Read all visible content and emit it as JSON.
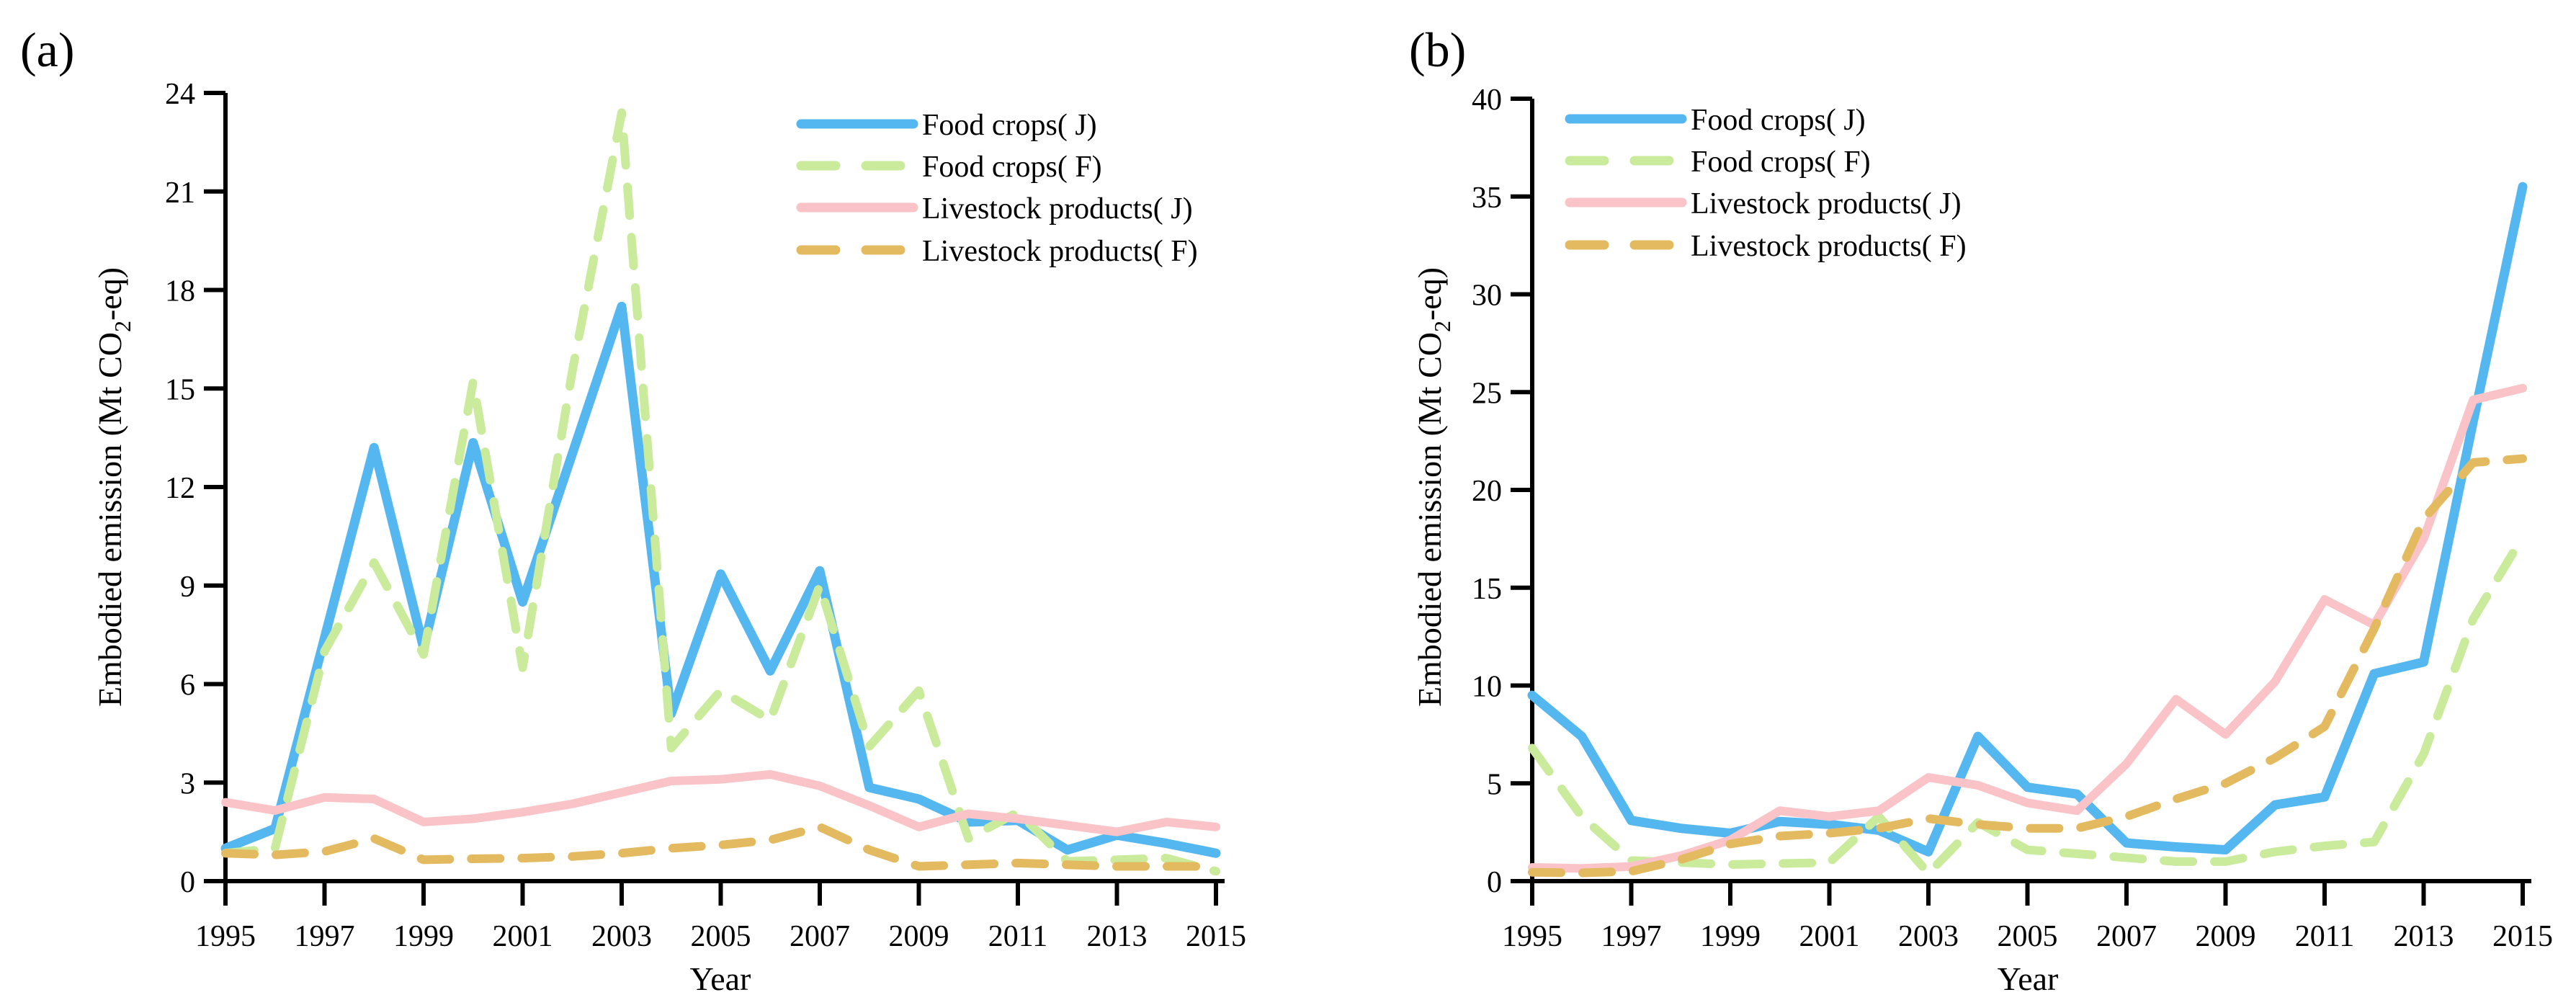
{
  "page": {
    "background": "#ffffff",
    "figure_type": "dual-panel line chart"
  },
  "chart_data": [
    {
      "type": "line",
      "panel_label": "(a)",
      "xlabel": "Year",
      "ylabel_pre": "Embodied emission (Mt CO",
      "ylabel_sub": "2",
      "ylabel_post": "-eq)",
      "ylim": [
        0,
        24
      ],
      "yticks": [
        0,
        3,
        6,
        9,
        12,
        15,
        18,
        21,
        24
      ],
      "xticks": [
        1995,
        1997,
        1999,
        2001,
        2003,
        2005,
        2007,
        2009,
        2011,
        2013,
        2015
      ],
      "x": [
        1995,
        1996,
        1997,
        1998,
        1999,
        2000,
        2001,
        2002,
        2003,
        2004,
        2005,
        2006,
        2007,
        2008,
        2009,
        2010,
        2011,
        2012,
        2013,
        2014,
        2015
      ],
      "grid": false,
      "legend_position": "upper right inside",
      "series": [
        {
          "name": "Food crops( J)",
          "color": "#55b7f0",
          "style": "solid",
          "values": [
            1.0,
            1.6,
            7.4,
            13.2,
            7.1,
            13.35,
            8.5,
            13.0,
            17.5,
            5.1,
            9.35,
            6.4,
            9.45,
            2.85,
            2.5,
            1.8,
            1.85,
            0.95,
            1.4,
            1.15,
            0.85
          ]
        },
        {
          "name": "Food crops( F)",
          "color": "#c9eb9b",
          "style": "dashed",
          "values": [
            0.85,
            1.0,
            7.0,
            9.7,
            6.9,
            15.2,
            6.5,
            15.5,
            23.4,
            4.05,
            5.8,
            4.9,
            9.0,
            4.1,
            5.8,
            1.3,
            2.1,
            0.6,
            0.65,
            0.7,
            0.3
          ]
        },
        {
          "name": "Livestock products( J)",
          "color": "#f9c3c7",
          "style": "solid",
          "values": [
            2.4,
            2.15,
            2.55,
            2.5,
            1.8,
            1.9,
            2.1,
            2.35,
            2.7,
            3.05,
            3.1,
            3.25,
            2.9,
            2.3,
            1.65,
            2.05,
            1.9,
            1.7,
            1.5,
            1.8,
            1.65
          ]
        },
        {
          "name": "Livestock products( F)",
          "color": "#e4ba60",
          "style": "dashed",
          "values": [
            0.85,
            0.8,
            0.9,
            1.3,
            0.65,
            0.68,
            0.7,
            0.75,
            0.85,
            1.0,
            1.1,
            1.25,
            1.65,
            0.95,
            0.45,
            0.5,
            0.55,
            0.5,
            0.45,
            0.45,
            0.45
          ]
        }
      ]
    },
    {
      "type": "line",
      "panel_label": "(b)",
      "xlabel": "Year",
      "ylabel_pre": "Embodied emission (Mt CO",
      "ylabel_sub": "2",
      "ylabel_post": "-eq)",
      "ylim": [
        0,
        40
      ],
      "yticks": [
        0,
        5,
        10,
        15,
        20,
        25,
        30,
        35,
        40
      ],
      "xticks": [
        1995,
        1997,
        1999,
        2001,
        2003,
        2005,
        2007,
        2009,
        2011,
        2013,
        2015
      ],
      "x": [
        1995,
        1996,
        1997,
        1998,
        1999,
        2000,
        2001,
        2002,
        2003,
        2004,
        2005,
        2006,
        2007,
        2008,
        2009,
        2010,
        2011,
        2012,
        2013,
        2014,
        2015
      ],
      "grid": false,
      "legend_position": "upper left inside",
      "series": [
        {
          "name": "Food crops( J)",
          "color": "#55b7f0",
          "style": "solid",
          "values": [
            9.5,
            7.4,
            3.1,
            2.7,
            2.45,
            3.05,
            2.9,
            2.6,
            1.5,
            7.4,
            4.8,
            4.45,
            1.95,
            1.75,
            1.6,
            3.9,
            4.3,
            10.6,
            11.2,
            23.5,
            35.5
          ]
        },
        {
          "name": "Food crops( F)",
          "color": "#c9eb9b",
          "style": "dashed",
          "values": [
            6.8,
            3.3,
            1.05,
            0.95,
            0.85,
            0.9,
            0.95,
            3.3,
            0.4,
            3.0,
            1.6,
            1.4,
            1.2,
            1.0,
            1.0,
            1.5,
            1.8,
            2.0,
            6.5,
            13.4,
            17.6
          ]
        },
        {
          "name": "Livestock products( J)",
          "color": "#f9c3c7",
          "style": "solid",
          "values": [
            0.7,
            0.65,
            0.75,
            1.3,
            2.1,
            3.6,
            3.3,
            3.6,
            5.3,
            4.9,
            4.0,
            3.6,
            6.0,
            9.3,
            7.5,
            10.2,
            14.4,
            13.1,
            17.5,
            24.6,
            25.2
          ]
        },
        {
          "name": "Livestock products( F)",
          "color": "#e4ba60",
          "style": "dashed",
          "values": [
            0.45,
            0.42,
            0.5,
            1.1,
            1.9,
            2.3,
            2.45,
            2.7,
            3.2,
            2.9,
            2.7,
            2.7,
            3.3,
            4.2,
            5.0,
            6.3,
            7.9,
            12.9,
            18.5,
            21.4,
            21.6
          ]
        }
      ]
    }
  ]
}
